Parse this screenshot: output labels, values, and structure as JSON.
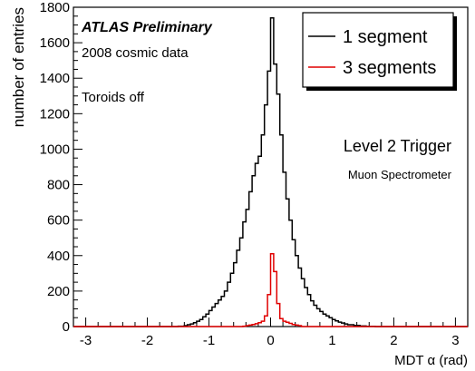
{
  "chart_data": {
    "type": "histogram",
    "xlabel": "MDT α (rad)",
    "ylabel": "number of entries",
    "xlim": [
      -3.2,
      3.2
    ],
    "ylim": [
      0,
      1800
    ],
    "x_ticks": [
      -3,
      -2,
      -1,
      0,
      1,
      2,
      3
    ],
    "y_ticks": [
      0,
      200,
      400,
      600,
      800,
      1000,
      1200,
      1400,
      1600,
      1800
    ],
    "grid": false,
    "legend_position": "top-right",
    "annotations": {
      "experiment": "ATLAS Preliminary",
      "dataset": "2008 cosmic data",
      "condition": "Toroids off",
      "trigger": "Level 2 Trigger",
      "subsystem": "Muon Spectrometer"
    },
    "series": [
      {
        "name": "1 segment",
        "color": "#000000",
        "bins": [
          [
            -3.2,
            0
          ],
          [
            -1.5,
            2
          ],
          [
            -1.4,
            5
          ],
          [
            -1.35,
            10
          ],
          [
            -1.3,
            15
          ],
          [
            -1.25,
            22
          ],
          [
            -1.2,
            30
          ],
          [
            -1.15,
            40
          ],
          [
            -1.1,
            55
          ],
          [
            -1.05,
            70
          ],
          [
            -1.0,
            90
          ],
          [
            -0.95,
            110
          ],
          [
            -0.9,
            130
          ],
          [
            -0.85,
            150
          ],
          [
            -0.8,
            170
          ],
          [
            -0.75,
            200
          ],
          [
            -0.7,
            250
          ],
          [
            -0.65,
            300
          ],
          [
            -0.6,
            360
          ],
          [
            -0.55,
            430
          ],
          [
            -0.5,
            500
          ],
          [
            -0.45,
            590
          ],
          [
            -0.4,
            660
          ],
          [
            -0.35,
            760
          ],
          [
            -0.3,
            850
          ],
          [
            -0.25,
            920
          ],
          [
            -0.2,
            960
          ],
          [
            -0.15,
            1080
          ],
          [
            -0.1,
            1250
          ],
          [
            -0.05,
            1440
          ],
          [
            0.0,
            1740
          ],
          [
            0.05,
            1480
          ],
          [
            0.1,
            1310
          ],
          [
            0.15,
            1080
          ],
          [
            0.2,
            870
          ],
          [
            0.25,
            720
          ],
          [
            0.3,
            600
          ],
          [
            0.35,
            490
          ],
          [
            0.4,
            400
          ],
          [
            0.45,
            330
          ],
          [
            0.5,
            270
          ],
          [
            0.55,
            220
          ],
          [
            0.6,
            180
          ],
          [
            0.65,
            145
          ],
          [
            0.7,
            120
          ],
          [
            0.75,
            100
          ],
          [
            0.8,
            85
          ],
          [
            0.85,
            70
          ],
          [
            0.9,
            60
          ],
          [
            0.95,
            50
          ],
          [
            1.0,
            40
          ],
          [
            1.05,
            32
          ],
          [
            1.1,
            25
          ],
          [
            1.15,
            20
          ],
          [
            1.2,
            15
          ],
          [
            1.25,
            10
          ],
          [
            1.35,
            6
          ],
          [
            1.45,
            3
          ],
          [
            1.55,
            1
          ],
          [
            1.7,
            0
          ]
        ]
      },
      {
        "name": "3 segments",
        "color": "#e00000",
        "bins": [
          [
            -3.2,
            0
          ],
          [
            -0.45,
            2
          ],
          [
            -0.4,
            5
          ],
          [
            -0.35,
            8
          ],
          [
            -0.3,
            12
          ],
          [
            -0.25,
            16
          ],
          [
            -0.2,
            22
          ],
          [
            -0.15,
            30
          ],
          [
            -0.1,
            60
          ],
          [
            -0.05,
            180
          ],
          [
            0.0,
            410
          ],
          [
            0.05,
            310
          ],
          [
            0.1,
            130
          ],
          [
            0.15,
            45
          ],
          [
            0.2,
            30
          ],
          [
            0.25,
            24
          ],
          [
            0.3,
            18
          ],
          [
            0.35,
            12
          ],
          [
            0.4,
            8
          ],
          [
            0.45,
            5
          ],
          [
            0.5,
            0
          ]
        ]
      }
    ]
  }
}
